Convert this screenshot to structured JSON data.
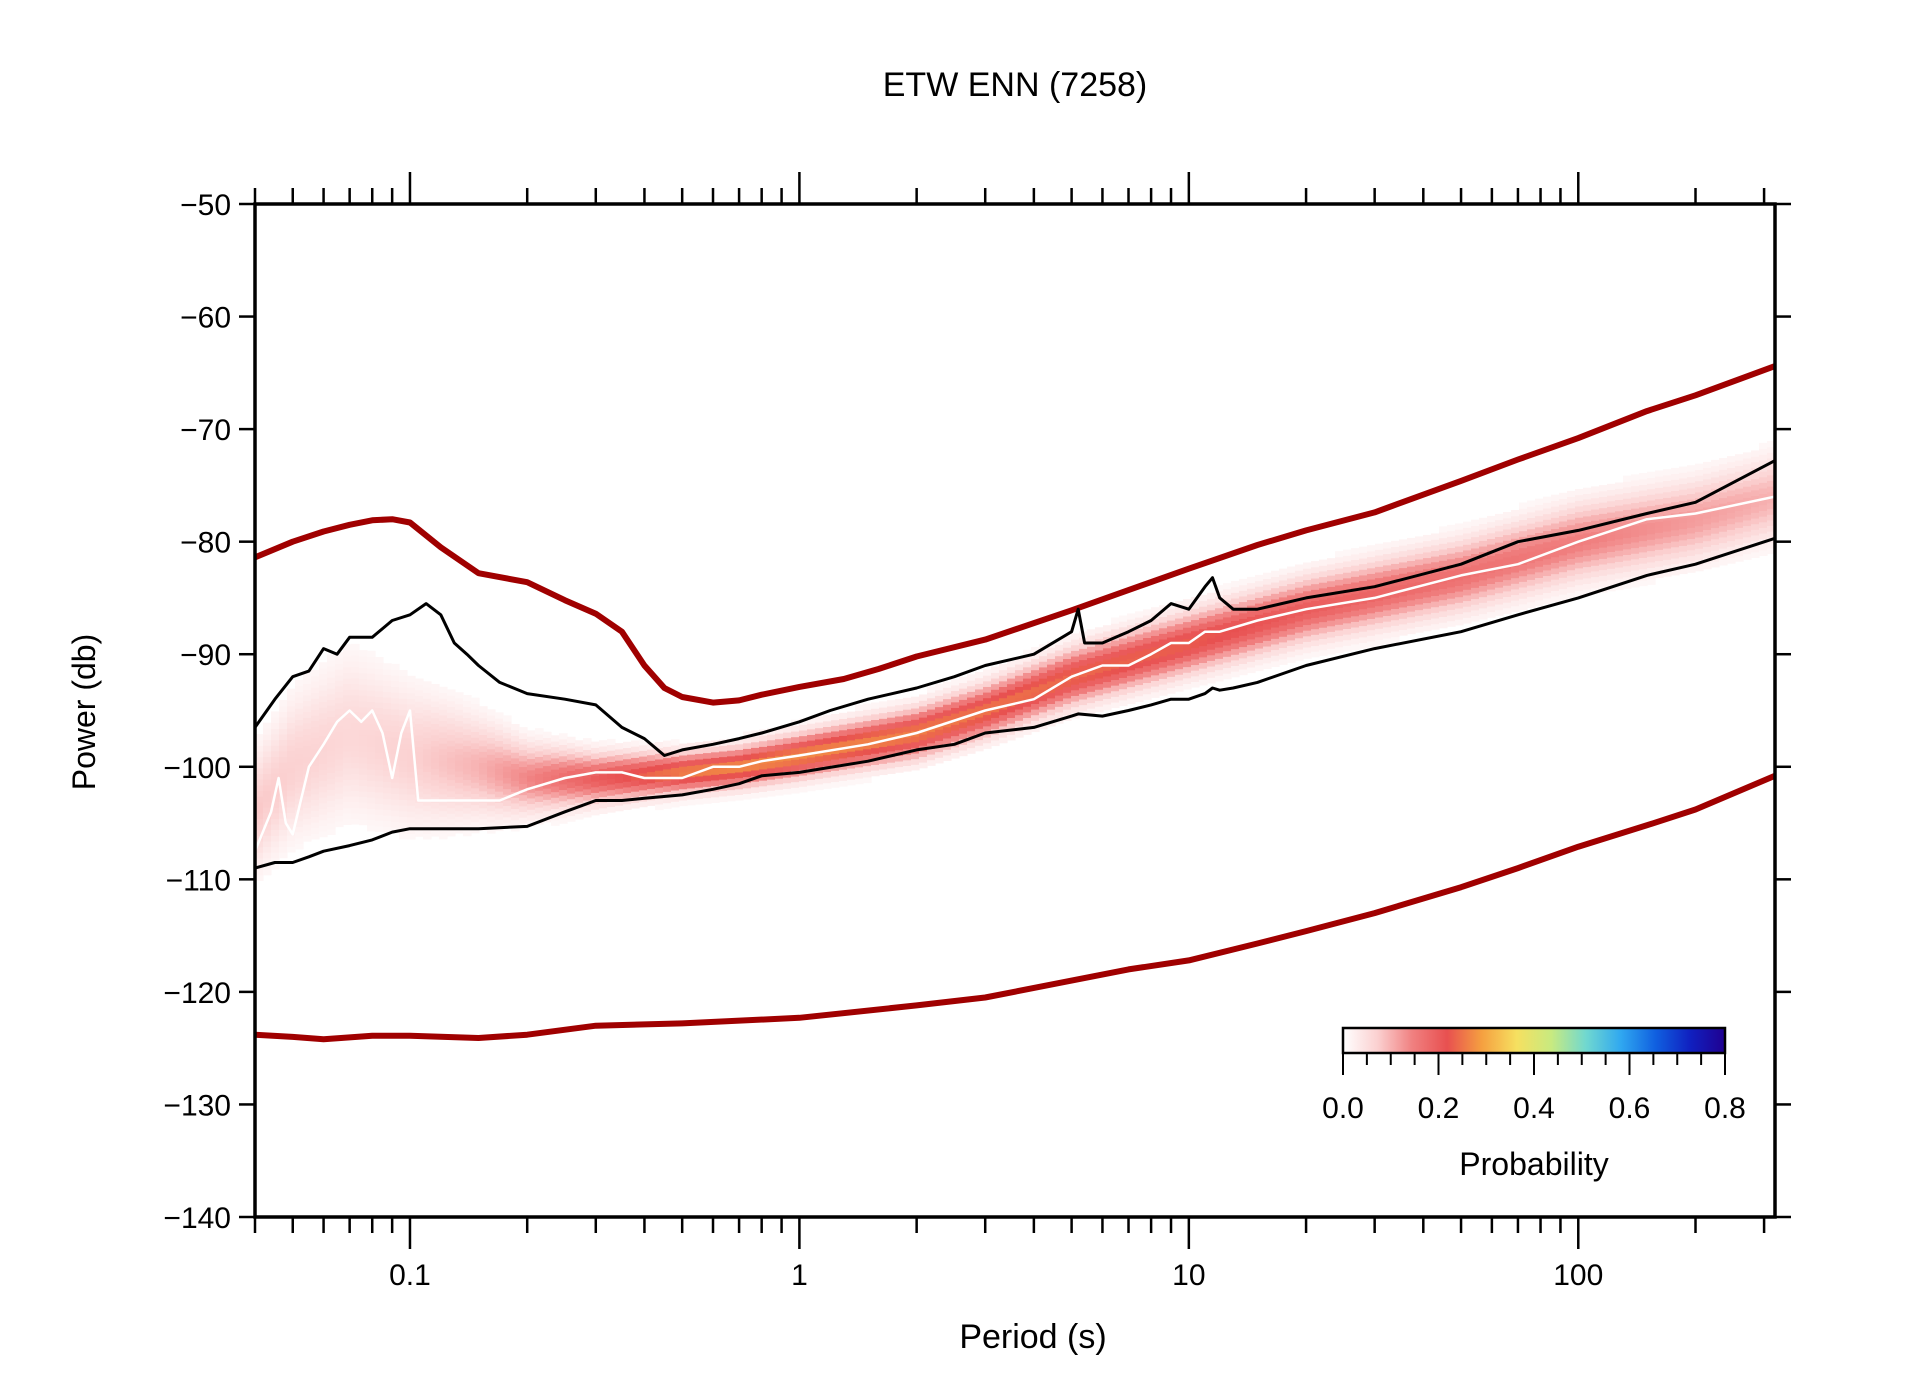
{
  "chart_data": {
    "type": "heatmap",
    "title": "ETW ENN (7258)",
    "xlabel": "Period (s)",
    "ylabel": "Power (db)",
    "x_scale": "log",
    "xlim": [
      0.04,
      320
    ],
    "ylim": [
      -140,
      -50
    ],
    "x_ticks": [
      0.1,
      1,
      10,
      100
    ],
    "x_tick_labels": [
      "0.1",
      "1",
      "10",
      "100"
    ],
    "y_ticks": [
      -50,
      -60,
      -70,
      -80,
      -90,
      -100,
      -110,
      -120,
      -130,
      -140
    ],
    "y_tick_labels": [
      "−50",
      "−60",
      "−70",
      "−80",
      "−90",
      "−100",
      "−110",
      "−120",
      "−130",
      "−140"
    ],
    "grid": false,
    "colorbar": {
      "label": "Probability",
      "range": [
        0.0,
        0.8
      ],
      "ticks": [
        0.0,
        0.2,
        0.4,
        0.6,
        0.8
      ],
      "tick_labels": [
        "0.0",
        "0.2",
        "0.4",
        "0.6",
        "0.8"
      ],
      "colors": [
        "#ffffff",
        "#fbd0d0",
        "#f08080",
        "#e85050",
        "#f5a040",
        "#f6e060",
        "#c8ea80",
        "#70d8d0",
        "#30a8f0",
        "#1060e0",
        "#1020c0",
        "#200090"
      ],
      "placement": "bottom-right"
    },
    "series": [
      {
        "name": "",
        "role": "high-noise-model",
        "color": "#a00000",
        "x": [
          0.04,
          0.05,
          0.06,
          0.07,
          0.08,
          0.09,
          0.1,
          0.12,
          0.15,
          0.2,
          0.25,
          0.3,
          0.35,
          0.4,
          0.45,
          0.5,
          0.6,
          0.7,
          0.8,
          1,
          1.3,
          1.6,
          2,
          3,
          5,
          7,
          10,
          15,
          20,
          30,
          50,
          70,
          100,
          150,
          200,
          320
        ],
        "y": [
          -81.4,
          -80,
          -79.1,
          -78.5,
          -78.1,
          -78,
          -78.3,
          -80.5,
          -82.8,
          -83.6,
          -85.2,
          -86.4,
          -88,
          -91,
          -93,
          -93.8,
          -94.3,
          -94.1,
          -93.6,
          -92.9,
          -92.2,
          -91.3,
          -90.2,
          -88.7,
          -86.1,
          -84.3,
          -82.4,
          -80.3,
          -79,
          -77.4,
          -74.6,
          -72.7,
          -70.8,
          -68.4,
          -67,
          -64.4
        ]
      },
      {
        "name": "",
        "role": "low-noise-model",
        "color": "#a00000",
        "x": [
          0.04,
          0.05,
          0.06,
          0.08,
          0.1,
          0.15,
          0.2,
          0.3,
          0.5,
          1,
          2,
          3,
          5,
          7,
          10,
          15,
          20,
          30,
          50,
          70,
          100,
          150,
          200,
          320
        ],
        "y": [
          -123.8,
          -124,
          -124.2,
          -123.9,
          -123.9,
          -124.1,
          -123.8,
          -123,
          -122.8,
          -122.3,
          -121.2,
          -120.5,
          -119,
          -118,
          -117.2,
          -115.7,
          -114.6,
          -113,
          -110.7,
          -109,
          -107.1,
          -105.2,
          -103.8,
          -100.8
        ]
      },
      {
        "name": "",
        "role": "upper-percentile",
        "color": "#000000",
        "x": [
          0.04,
          0.045,
          0.05,
          0.055,
          0.06,
          0.065,
          0.07,
          0.08,
          0.09,
          0.1,
          0.11,
          0.12,
          0.13,
          0.14,
          0.15,
          0.17,
          0.2,
          0.25,
          0.3,
          0.35,
          0.4,
          0.45,
          0.5,
          0.6,
          0.7,
          0.8,
          1,
          1.2,
          1.5,
          2,
          2.5,
          3,
          4,
          5,
          5.2,
          5.4,
          6,
          7,
          8,
          9,
          10,
          11,
          11.5,
          12,
          13,
          15,
          20,
          30,
          50,
          70,
          100,
          150,
          200,
          320
        ],
        "y": [
          -96.5,
          -94,
          -92,
          -91.5,
          -89.5,
          -90,
          -88.5,
          -88.5,
          -87,
          -86.5,
          -85.5,
          -86.5,
          -89,
          -90,
          -91,
          -92.5,
          -93.5,
          -94,
          -94.5,
          -96.5,
          -97.5,
          -99,
          -98.5,
          -98,
          -97.5,
          -97,
          -96,
          -95,
          -94,
          -93,
          -92,
          -91,
          -90,
          -88,
          -86,
          -89,
          -89,
          -88,
          -87,
          -85.5,
          -86,
          -84,
          -83.2,
          -85,
          -86,
          -86,
          -85,
          -84,
          -82,
          -80,
          -79,
          -77.5,
          -76.5,
          -72.8
        ]
      },
      {
        "name": "",
        "role": "lower-percentile",
        "color": "#000000",
        "x": [
          0.04,
          0.045,
          0.05,
          0.055,
          0.06,
          0.07,
          0.08,
          0.09,
          0.1,
          0.11,
          0.12,
          0.15,
          0.2,
          0.25,
          0.3,
          0.35,
          0.4,
          0.5,
          0.6,
          0.7,
          0.8,
          1,
          1.5,
          2,
          2.5,
          3,
          4,
          5,
          5.2,
          6,
          7,
          8,
          9,
          10,
          11,
          11.5,
          12,
          13,
          15,
          20,
          30,
          50,
          70,
          100,
          150,
          200,
          320
        ],
        "y": [
          -109,
          -108.5,
          -108.5,
          -108,
          -107.5,
          -107,
          -106.5,
          -105.8,
          -105.5,
          -105.5,
          -105.5,
          -105.5,
          -105.3,
          -104,
          -103,
          -103,
          -102.8,
          -102.5,
          -102,
          -101.5,
          -100.8,
          -100.5,
          -99.5,
          -98.5,
          -98,
          -97,
          -96.5,
          -95.5,
          -95.3,
          -95.5,
          -95,
          -94.5,
          -94,
          -94,
          -93.5,
          -93,
          -93.2,
          -93,
          -92.5,
          -91,
          -89.5,
          -88,
          -86.5,
          -85,
          -83,
          -82,
          -79.7
        ]
      },
      {
        "name": "",
        "role": "mode",
        "color": "#ffffff",
        "x": [
          0.04,
          0.044,
          0.046,
          0.048,
          0.05,
          0.055,
          0.06,
          0.065,
          0.07,
          0.075,
          0.08,
          0.085,
          0.09,
          0.095,
          0.1,
          0.105,
          0.11,
          0.12,
          0.13,
          0.15,
          0.17,
          0.2,
          0.25,
          0.3,
          0.35,
          0.4,
          0.5,
          0.6,
          0.7,
          0.8,
          1,
          1.5,
          2,
          3,
          4,
          5,
          6,
          7,
          8,
          9,
          10,
          11,
          12,
          15,
          20,
          30,
          50,
          70,
          100,
          150,
          200,
          320
        ],
        "y": [
          -107.5,
          -104,
          -101,
          -105,
          -106,
          -100,
          -98,
          -96,
          -95,
          -96,
          -95,
          -97,
          -101,
          -97,
          -95,
          -103,
          -103,
          -103,
          -103,
          -103,
          -103,
          -102,
          -101,
          -100.5,
          -100.5,
          -101,
          -101,
          -100,
          -100,
          -99.5,
          -99,
          -98,
          -97,
          -95,
          -94,
          -92,
          -91,
          -91,
          -90,
          -89,
          -89,
          -88,
          -88,
          -87,
          -86,
          -85,
          -83,
          -82,
          -80,
          -78,
          -77.5,
          -76
        ]
      }
    ],
    "density_band": {
      "x": [
        0.04,
        0.05,
        0.07,
        0.1,
        0.15,
        0.2,
        0.3,
        0.5,
        0.7,
        1,
        2,
        3,
        5,
        10,
        20,
        50,
        100,
        200,
        320
      ],
      "center": [
        -104,
        -100,
        -97,
        -99,
        -100,
        -101,
        -101,
        -100.5,
        -100,
        -99,
        -97,
        -95,
        -92,
        -89,
        -86,
        -83,
        -80,
        -78,
        -76
      ],
      "halfwidth": [
        6,
        7,
        8,
        7,
        5,
        3.5,
        2.5,
        2,
        2,
        2.2,
        2.5,
        2.6,
        2.8,
        3,
        3.2,
        3.5,
        3.8,
        4,
        4.2
      ],
      "peak_probability": [
        0.08,
        0.07,
        0.06,
        0.07,
        0.1,
        0.14,
        0.2,
        0.26,
        0.27,
        0.27,
        0.26,
        0.25,
        0.24,
        0.23,
        0.2,
        0.17,
        0.15,
        0.12,
        0.1
      ]
    }
  }
}
